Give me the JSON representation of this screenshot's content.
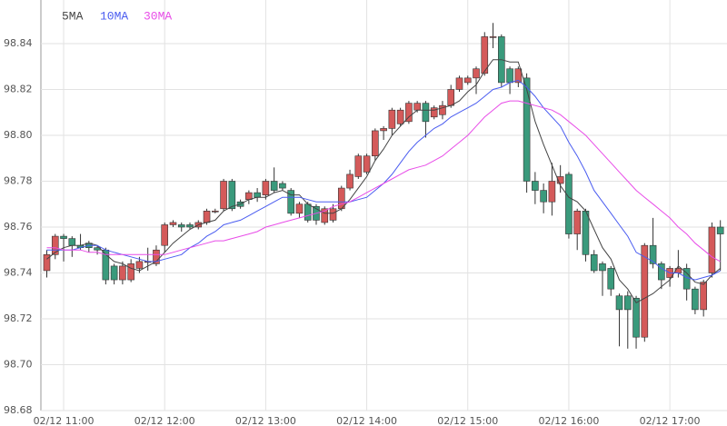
{
  "chart_data": {
    "type": "candlestick",
    "categories": [
      null,
      null,
      "02/12 11:00",
      null,
      null,
      null,
      null,
      null,
      null,
      null,
      null,
      null,
      null,
      null,
      "02/12 12:00",
      null,
      null,
      null,
      null,
      null,
      null,
      null,
      null,
      null,
      null,
      null,
      "02/12 13:00",
      null,
      null,
      null,
      null,
      null,
      null,
      null,
      null,
      null,
      null,
      null,
      "02/12 14:00",
      null,
      null,
      null,
      null,
      null,
      null,
      null,
      null,
      null,
      null,
      null,
      "02/12 15:00",
      null,
      null,
      null,
      null,
      null,
      null,
      null,
      null,
      null,
      null,
      null,
      "02/12 16:00",
      null,
      null,
      null,
      null,
      null,
      null,
      null,
      null,
      null,
      null,
      null,
      "02/12 17:00",
      null,
      null,
      null,
      null,
      null,
      null
    ],
    "open": [
      98.741,
      98.748,
      98.756,
      98.755,
      98.752,
      98.753,
      98.751,
      98.75,
      98.743,
      98.737,
      98.737,
      98.742,
      98.745,
      98.744,
      98.752,
      98.761,
      98.761,
      98.761,
      98.76,
      98.762,
      98.767,
      98.768,
      98.78,
      98.771,
      98.772,
      98.775,
      98.774,
      98.78,
      98.779,
      98.776,
      98.766,
      98.77,
      98.769,
      98.762,
      98.763,
      98.768,
      98.777,
      98.782,
      98.784,
      98.791,
      98.802,
      98.803,
      98.805,
      98.806,
      98.811,
      98.814,
      98.808,
      98.809,
      98.813,
      98.82,
      98.823,
      98.825,
      98.827,
      98.843,
      98.843,
      98.829,
      98.823,
      98.825,
      98.78,
      98.776,
      98.771,
      98.779,
      98.783,
      98.757,
      98.767,
      98.748,
      98.744,
      98.742,
      98.73,
      98.73,
      98.729,
      98.712,
      98.752,
      98.744,
      98.738,
      98.74,
      98.742,
      98.733,
      98.724,
      98.74,
      98.76
    ],
    "high": [
      98.75,
      98.757,
      98.757,
      98.756,
      98.757,
      98.754,
      98.752,
      98.751,
      98.744,
      98.745,
      98.746,
      98.747,
      98.751,
      98.752,
      98.762,
      98.763,
      98.762,
      98.762,
      98.763,
      98.768,
      98.768,
      98.781,
      98.781,
      98.772,
      98.776,
      98.777,
      98.781,
      98.786,
      98.78,
      98.777,
      98.771,
      98.771,
      98.77,
      98.769,
      98.77,
      98.778,
      98.785,
      98.792,
      98.792,
      98.803,
      98.804,
      98.812,
      98.812,
      98.815,
      98.815,
      98.815,
      98.813,
      98.815,
      98.822,
      98.826,
      98.826,
      98.83,
      98.845,
      98.849,
      98.844,
      98.83,
      98.83,
      98.827,
      98.784,
      98.779,
      98.788,
      98.787,
      98.784,
      98.768,
      98.768,
      98.75,
      98.745,
      98.743,
      98.731,
      98.732,
      98.73,
      98.753,
      98.764,
      98.745,
      98.743,
      98.75,
      98.744,
      98.734,
      98.737,
      98.762,
      98.763
    ],
    "low": [
      98.738,
      98.746,
      98.745,
      98.747,
      98.75,
      98.749,
      98.748,
      98.735,
      98.735,
      98.735,
      98.736,
      98.74,
      98.741,
      98.743,
      98.749,
      98.76,
      98.758,
      98.759,
      98.759,
      98.761,
      98.766,
      98.767,
      98.767,
      98.768,
      98.77,
      98.771,
      98.772,
      98.775,
      98.776,
      98.765,
      98.764,
      98.762,
      98.761,
      98.761,
      98.762,
      98.767,
      98.776,
      98.781,
      98.783,
      98.789,
      98.798,
      98.8,
      98.804,
      98.805,
      98.81,
      98.799,
      98.807,
      98.807,
      98.812,
      98.819,
      98.822,
      98.818,
      98.826,
      98.838,
      98.821,
      98.818,
      98.821,
      98.775,
      98.77,
      98.766,
      98.765,
      98.775,
      98.755,
      98.75,
      98.745,
      98.74,
      98.73,
      98.73,
      98.708,
      98.707,
      98.707,
      98.71,
      98.742,
      98.733,
      98.734,
      98.738,
      98.728,
      98.722,
      98.721,
      98.738,
      98.741
    ],
    "close": [
      98.748,
      98.756,
      98.755,
      98.752,
      98.751,
      98.751,
      98.75,
      98.737,
      98.737,
      98.743,
      98.744,
      98.745,
      98.745,
      98.75,
      98.761,
      98.762,
      98.76,
      98.76,
      98.762,
      98.767,
      98.767,
      98.78,
      98.768,
      98.769,
      98.775,
      98.773,
      98.78,
      98.776,
      98.777,
      98.766,
      98.77,
      98.763,
      98.763,
      98.768,
      98.768,
      98.777,
      98.783,
      98.791,
      98.791,
      98.802,
      98.803,
      98.811,
      98.811,
      98.814,
      98.814,
      98.806,
      98.812,
      98.813,
      98.82,
      98.825,
      98.825,
      98.829,
      98.843,
      98.843,
      98.823,
      98.823,
      98.829,
      98.78,
      98.776,
      98.771,
      98.78,
      98.782,
      98.757,
      98.767,
      98.748,
      98.741,
      98.741,
      98.733,
      98.724,
      98.724,
      98.712,
      98.752,
      98.744,
      98.737,
      98.742,
      98.742,
      98.733,
      98.724,
      98.736,
      98.76,
      98.757
    ],
    "up_color": "#d45a5a",
    "down_color": "#3a9a7c",
    "series": [
      {
        "name": "5MA",
        "color": "#444444",
        "values": [
          98.746,
          98.749,
          98.751,
          98.752,
          98.752,
          98.753,
          98.752,
          98.748,
          98.745,
          98.744,
          98.742,
          98.741,
          98.743,
          98.745,
          98.749,
          98.753,
          98.756,
          98.759,
          98.761,
          98.762,
          98.763,
          98.767,
          98.769,
          98.77,
          98.772,
          98.773,
          98.773,
          98.775,
          98.776,
          98.774,
          98.774,
          98.77,
          98.768,
          98.766,
          98.766,
          98.768,
          98.772,
          98.777,
          98.782,
          98.789,
          98.794,
          98.8,
          98.804,
          98.808,
          98.811,
          98.811,
          98.811,
          98.812,
          98.813,
          98.815,
          98.819,
          98.822,
          98.828,
          98.833,
          98.833,
          98.832,
          98.832,
          98.82,
          98.806,
          98.796,
          98.787,
          98.778,
          98.773,
          98.771,
          98.767,
          98.759,
          98.751,
          98.746,
          98.737,
          98.733,
          98.727,
          98.729,
          98.731,
          98.734,
          98.737,
          98.743,
          98.74,
          98.736,
          98.735,
          98.739,
          98.742
        ]
      },
      {
        "name": "10MA",
        "color": "#4a5cf0",
        "values": [
          98.75,
          98.75,
          98.75,
          98.75,
          98.751,
          98.752,
          98.752,
          98.75,
          98.749,
          98.748,
          98.747,
          98.746,
          98.745,
          98.745,
          98.746,
          98.747,
          98.748,
          98.751,
          98.753,
          98.756,
          98.758,
          98.761,
          98.762,
          98.763,
          98.765,
          98.767,
          98.769,
          98.771,
          98.773,
          98.773,
          98.773,
          98.772,
          98.771,
          98.771,
          98.771,
          98.771,
          98.771,
          98.772,
          98.773,
          98.776,
          98.779,
          98.783,
          98.788,
          98.793,
          98.797,
          98.8,
          98.803,
          98.805,
          98.808,
          98.81,
          98.812,
          98.814,
          98.817,
          98.82,
          98.821,
          98.823,
          98.824,
          98.821,
          98.817,
          98.812,
          98.808,
          98.804,
          98.797,
          98.791,
          98.784,
          98.776,
          98.771,
          98.766,
          98.761,
          98.756,
          98.749,
          98.747,
          98.745,
          98.742,
          98.74,
          98.74,
          98.738,
          98.737,
          98.738,
          98.739,
          98.741
        ]
      },
      {
        "name": "30MA",
        "color": "#e84ce8",
        "values": [
          98.751,
          98.751,
          98.75,
          98.75,
          98.75,
          98.749,
          98.749,
          98.748,
          98.748,
          98.748,
          98.748,
          98.748,
          98.748,
          98.748,
          98.748,
          98.749,
          98.75,
          98.751,
          98.752,
          98.753,
          98.754,
          98.754,
          98.755,
          98.756,
          98.757,
          98.758,
          98.76,
          98.761,
          98.762,
          98.763,
          98.764,
          98.765,
          98.766,
          98.767,
          98.769,
          98.77,
          98.771,
          98.773,
          98.775,
          98.777,
          98.779,
          98.781,
          98.783,
          98.785,
          98.786,
          98.787,
          98.789,
          98.791,
          98.794,
          98.797,
          98.8,
          98.804,
          98.808,
          98.811,
          98.814,
          98.815,
          98.815,
          98.814,
          98.813,
          98.812,
          98.811,
          98.809,
          98.806,
          98.803,
          98.8,
          98.796,
          98.792,
          98.788,
          98.784,
          98.78,
          98.776,
          98.773,
          98.77,
          98.767,
          98.764,
          98.76,
          98.757,
          98.753,
          98.75,
          98.747,
          98.745
        ]
      }
    ],
    "ylim": [
      98.68,
      98.859
    ],
    "yticks": [
      98.68,
      {
        "value": 98.7,
        "label": "98.70"
      },
      98.72,
      98.74,
      98.76,
      98.78,
      {
        "value": 98.8,
        "label": "98.80"
      },
      98.82,
      98.84
    ],
    "grid": true
  }
}
